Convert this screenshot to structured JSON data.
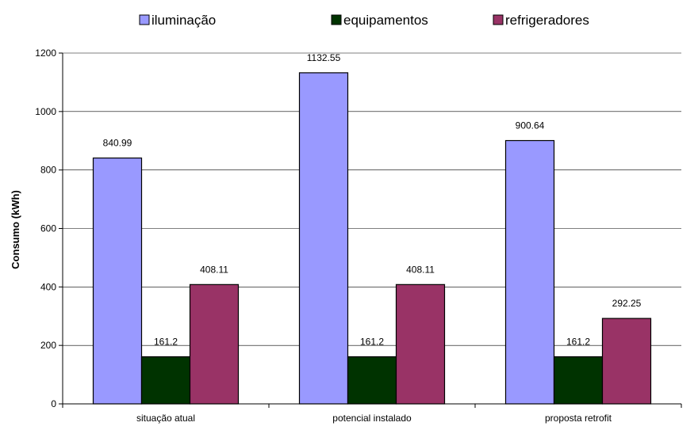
{
  "chart_data": {
    "type": "bar",
    "categories": [
      "situação atual",
      "potencial instalado",
      "proposta retrofit"
    ],
    "series": [
      {
        "name": "iluminação",
        "values": [
          840.99,
          1132.55,
          900.64
        ],
        "color": "#9999ff"
      },
      {
        "name": "equipamentos",
        "values": [
          161.2,
          161.2,
          161.2
        ],
        "color": "#003300"
      },
      {
        "name": "refrigeradores",
        "values": [
          408.11,
          408.11,
          292.25
        ],
        "color": "#993366"
      }
    ],
    "title": "",
    "xlabel": "",
    "ylabel": "Consumo (kWh)",
    "ylim": [
      0,
      1200
    ],
    "yticks": [
      0,
      200,
      400,
      600,
      800,
      1000,
      1200
    ],
    "grid": true,
    "legend_position": "top"
  }
}
